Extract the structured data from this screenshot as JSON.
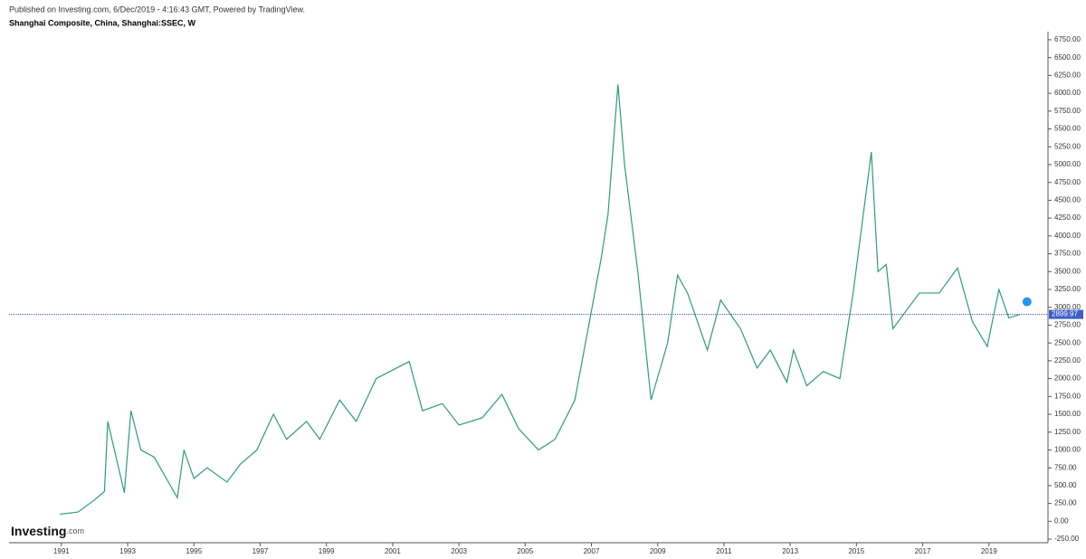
{
  "chart_data": {
    "type": "line",
    "header": "Published on Investing.com, 6/Dec/2019 - 4:16:43 GMT, Powered by TradingView.",
    "title": "Shanghai Composite, China, Shanghai:SSEC, W",
    "logo": "Investing",
    "logo_suffix": ".com",
    "series": [
      {
        "name": "SSEC",
        "color": "#2e9e6e",
        "x": [
          1990.95,
          1991.5,
          1992.0,
          1992.3,
          1992.4,
          1992.6,
          1992.9,
          1993.1,
          1993.4,
          1993.8,
          1994.5,
          1994.7,
          1995.0,
          1995.4,
          1996.0,
          1996.4,
          1996.9,
          1997.4,
          1997.8,
          1998.4,
          1998.8,
          1999.4,
          1999.9,
          2000.5,
          2001.5,
          2001.9,
          2002.5,
          2003.0,
          2003.7,
          2004.3,
          2004.8,
          2005.4,
          2005.9,
          2006.5,
          2006.9,
          2007.3,
          2007.5,
          2007.8,
          2008.0,
          2008.4,
          2008.8,
          2009.3,
          2009.6,
          2009.9,
          2010.5,
          2010.9,
          2011.5,
          2012.0,
          2012.4,
          2012.9,
          2013.1,
          2013.5,
          2014.0,
          2014.5,
          2014.9,
          2015.45,
          2015.65,
          2015.9,
          2016.1,
          2016.9,
          2017.5,
          2018.05,
          2018.5,
          2018.95,
          2019.3,
          2019.6,
          2019.93
        ],
        "values": [
          100,
          130,
          300,
          420,
          1400,
          1000,
          400,
          1550,
          1000,
          900,
          330,
          1000,
          600,
          750,
          550,
          800,
          1000,
          1500,
          1150,
          1400,
          1150,
          1700,
          1400,
          2000,
          2240,
          1550,
          1650,
          1350,
          1450,
          1780,
          1300,
          1000,
          1150,
          1700,
          2700,
          3700,
          4300,
          6124,
          5000,
          3500,
          1700,
          2500,
          3450,
          3200,
          2400,
          3100,
          2700,
          2150,
          2400,
          1950,
          2400,
          1900,
          2100,
          2000,
          3200,
          5178,
          3500,
          3600,
          2700,
          3200,
          3200,
          3550,
          2800,
          2450,
          3250,
          2850,
          2900
        ]
      }
    ],
    "last_price": 2899.97,
    "xlim": [
      1989.42,
      2020.7
    ],
    "xticks": [
      1991,
      1993,
      1995,
      1997,
      1999,
      2001,
      2003,
      2005,
      2007,
      2009,
      2011,
      2013,
      2015,
      2017,
      2019
    ],
    "ylim": [
      -300,
      6850
    ],
    "yticks": [
      {
        "value": -250,
        "label": "-250.00"
      },
      {
        "value": 0,
        "label": "0.00"
      },
      {
        "value": 250,
        "label": "250.00"
      },
      {
        "value": 500,
        "label": "500.00"
      },
      {
        "value": 750,
        "label": "750.00"
      },
      {
        "value": 1000,
        "label": "1000.00"
      },
      {
        "value": 1250,
        "label": "1250.00"
      },
      {
        "value": 1500,
        "label": "1500.00"
      },
      {
        "value": 1750,
        "label": "1750.00"
      },
      {
        "value": 2000,
        "label": "2000.00"
      },
      {
        "value": 2250,
        "label": "2250.00"
      },
      {
        "value": 2500,
        "label": "2500.00"
      },
      {
        "value": 2750,
        "label": "2750.00"
      },
      {
        "value": 3000,
        "label": "3000.00"
      },
      {
        "value": 3250,
        "label": "3250.00"
      },
      {
        "value": 3500,
        "label": "3500.00"
      },
      {
        "value": 3750,
        "label": "3750.00"
      },
      {
        "value": 4000,
        "label": "4000.00"
      },
      {
        "value": 4250,
        "label": "4250.00"
      },
      {
        "value": 4500,
        "label": "4500.00"
      },
      {
        "value": 4750,
        "label": "4750.00"
      },
      {
        "value": 5000,
        "label": "5000.00"
      },
      {
        "value": 5250,
        "label": "5250.00"
      },
      {
        "value": 5500,
        "label": "5500.00"
      },
      {
        "value": 5750,
        "label": "5750.00"
      },
      {
        "value": 6000,
        "label": "6000.00"
      },
      {
        "value": 6250,
        "label": "6250.00"
      },
      {
        "value": 6500,
        "label": "6500.00"
      },
      {
        "value": 6750,
        "label": "6750.00"
      }
    ],
    "grid": false
  }
}
